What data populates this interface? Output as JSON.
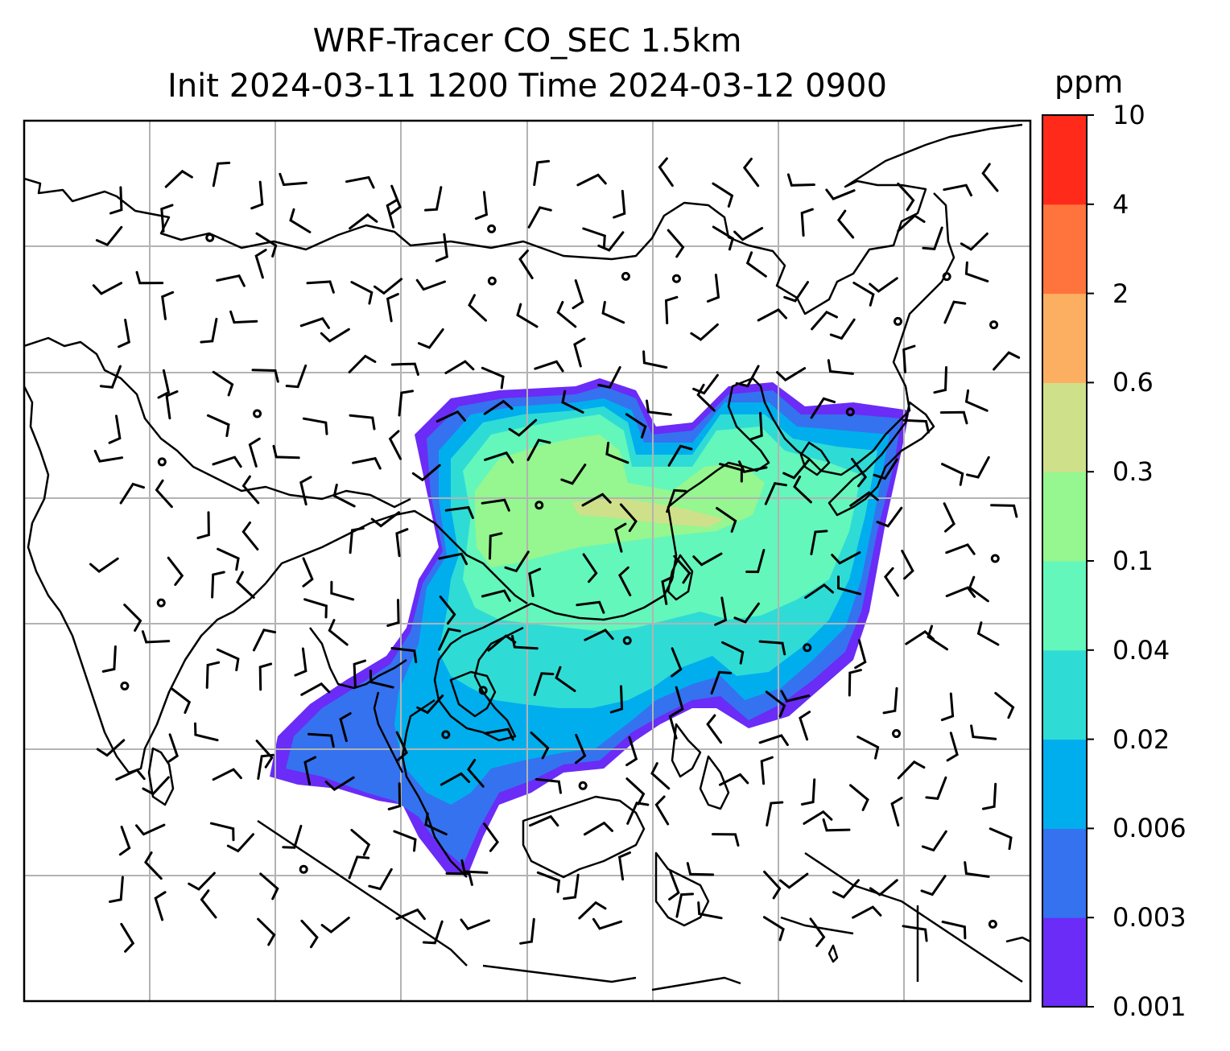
{
  "title": {
    "line1": "WRF-Tracer CO_SEC 1.5km",
    "line2": "Init 2024-03-11 1200 Time 2024-03-12 0900"
  },
  "colorbar": {
    "unit": "ppm",
    "ticks": [
      "0.001",
      "0.003",
      "0.006",
      "0.02",
      "0.04",
      "0.1",
      "0.3",
      "0.6",
      "2",
      "4",
      "10"
    ],
    "colors": [
      "#6a2cf6",
      "#3572ef",
      "#00aeee",
      "#2fdcd5",
      "#63f7bb",
      "#96f68f",
      "#cfe08b",
      "#fcae61",
      "#ff743c",
      "#ff2a1a"
    ]
  }
}
